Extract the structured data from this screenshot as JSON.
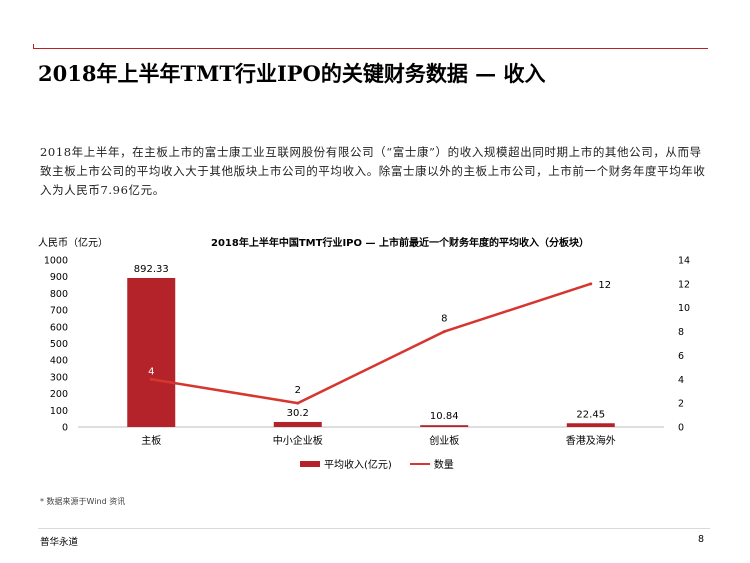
{
  "slide": {
    "title": "2018年上半年TMT行业IPO的关键财务数据 — 收入",
    "body": "2018年上半年，在主板上市的富士康工业互联网股份有限公司（“富士康”）的收入规模超出同时期上市的其他公司，从而导致主板上市公司的平均收入大于其他版块上市公司的平均收入。除富士康以外的主板上市公司，上市前一个财务年度平均年收入为人民币7.96亿元。",
    "footnote": "* 数据来源于Wind 资讯",
    "footer_left": "普华永道",
    "page_number": "8"
  },
  "colors": {
    "accent": "#b4232a",
    "bar": "#b4232a",
    "line": "#d6362f",
    "bar_label_on_bar": "#ffffff"
  },
  "chart_data": {
    "type": "bar+line",
    "title": "2018年上半年中国TMT行业IPO — 上市前最近一个财务年度的平均收入（分板块）",
    "ylabel": "人民币（亿元）",
    "categories": [
      "主板",
      "中小企业板",
      "创业板",
      "香港及海外"
    ],
    "series": [
      {
        "name": "平均收入(亿元)",
        "type": "bar",
        "axis": "left",
        "values": [
          892.33,
          30.2,
          10.84,
          22.45
        ],
        "labels": [
          "892.33",
          "30.2",
          "10.84",
          "22.45"
        ]
      },
      {
        "name": "数量",
        "type": "line",
        "axis": "right",
        "values": [
          4,
          2,
          8,
          12
        ],
        "labels": [
          "4",
          "2",
          "8",
          "12"
        ]
      }
    ],
    "ylim_left": [
      0,
      1000
    ],
    "yticks_left": [
      0,
      100,
      200,
      300,
      400,
      500,
      600,
      700,
      800,
      900,
      1000
    ],
    "ylim_right": [
      0,
      14
    ],
    "yticks_right": [
      0,
      2,
      4,
      6,
      8,
      10,
      12,
      14
    ],
    "legend": [
      "平均收入(亿元)",
      "数量"
    ],
    "legend_position": "bottom",
    "grid": false
  }
}
